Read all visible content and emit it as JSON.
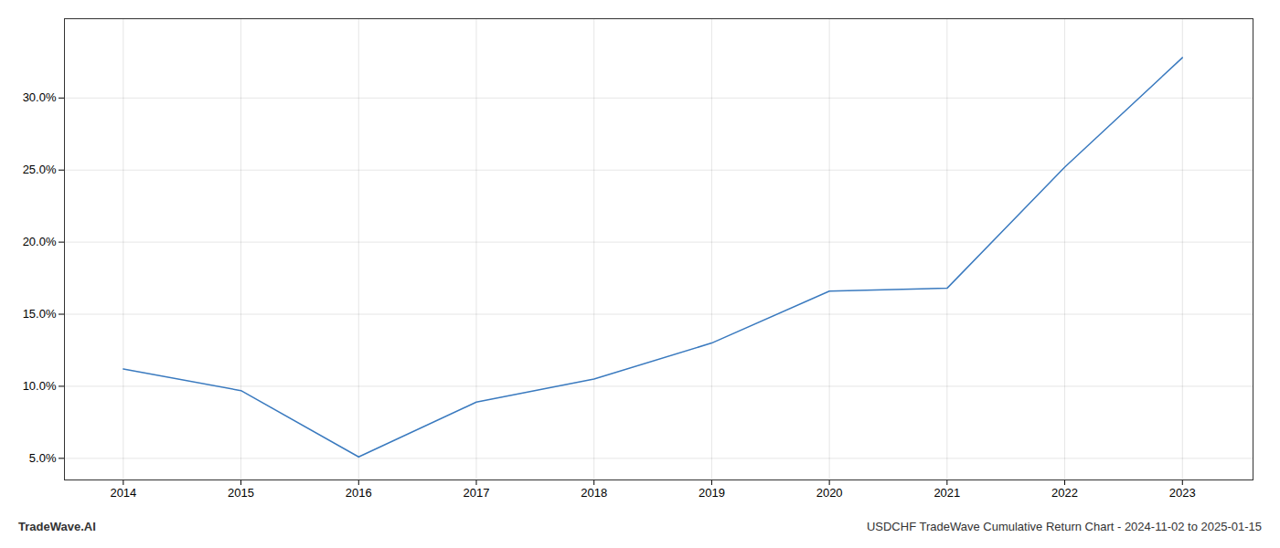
{
  "chart_data": {
    "type": "line",
    "x": [
      2014,
      2015,
      2016,
      2017,
      2018,
      2019,
      2020,
      2021,
      2022,
      2023
    ],
    "values": [
      11.2,
      9.7,
      5.1,
      8.9,
      10.5,
      13.0,
      16.6,
      16.8,
      25.2,
      32.8
    ],
    "color": "#3a7abf",
    "xlim": [
      2013.5,
      2023.6
    ],
    "xticks": [
      2014,
      2015,
      2016,
      2017,
      2018,
      2019,
      2020,
      2021,
      2022,
      2023
    ],
    "ylim": [
      3.5,
      35.5
    ],
    "yticks": [
      {
        "value": 5.0,
        "label": "5.0%"
      },
      {
        "value": 10.0,
        "label": "10.0%"
      },
      {
        "value": 15.0,
        "label": "15.0%"
      },
      {
        "value": 20.0,
        "label": "20.0%"
      },
      {
        "value": 25.0,
        "label": "25.0%"
      },
      {
        "value": 30.0,
        "label": "30.0%"
      }
    ],
    "grid": true,
    "annotations": [
      "TradeWave.AI",
      "USDCHF TradeWave Cumulative Return Chart - 2024-11-02 to 2025-01-15"
    ]
  }
}
